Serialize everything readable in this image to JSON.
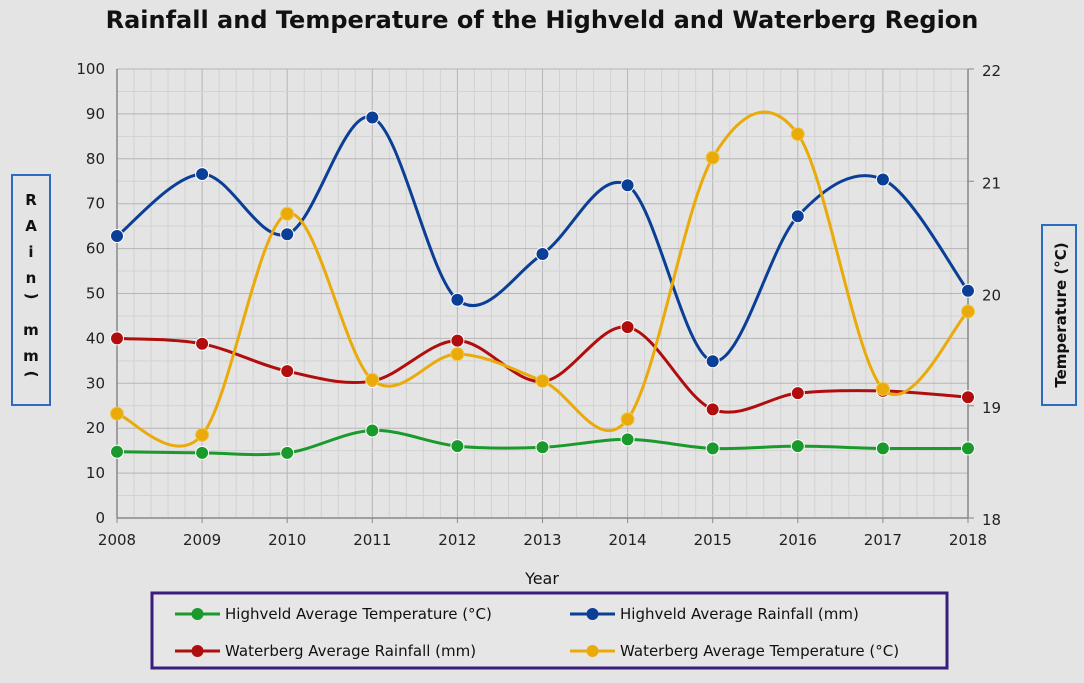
{
  "chart_data": {
    "type": "line",
    "title": "Rainfall and Temperature of the Highveld and Waterberg Region",
    "xlabel": "Year",
    "ylabel_left": "RAin(mm)",
    "ylabel_right": "Temperature (°C)",
    "x": [
      2008,
      2009,
      2010,
      2011,
      2012,
      2013,
      2014,
      2015,
      2016,
      2017,
      2018
    ],
    "ylim_left": [
      0,
      100
    ],
    "yticks_left": [
      0,
      10,
      20,
      30,
      40,
      50,
      60,
      70,
      80,
      90,
      100
    ],
    "ylim_right": [
      18,
      22
    ],
    "yticks_right": [
      18,
      19,
      20,
      21,
      22
    ],
    "grid": true,
    "legend_position": "bottom",
    "series": [
      {
        "name": "Highveld Average Temperature (°C)",
        "axis": "right",
        "color": "#1a9a2c",
        "values": [
          18.59,
          18.58,
          18.58,
          18.78,
          18.64,
          18.63,
          18.7,
          18.62,
          18.64,
          18.62,
          18.62
        ]
      },
      {
        "name": "Highveld Average Rainfall (mm)",
        "axis": "left",
        "color": "#0b3e96",
        "values": [
          62.8,
          76.6,
          63.2,
          89.2,
          48.6,
          58.8,
          74.1,
          34.9,
          67.2,
          75.4,
          50.6
        ]
      },
      {
        "name": "Waterberg Average Rainfall (mm)",
        "axis": "left",
        "color": "#b00e0e",
        "values": [
          40.0,
          38.8,
          32.7,
          30.5,
          39.5,
          30.4,
          42.5,
          24.2,
          27.8,
          28.3,
          26.9
        ]
      },
      {
        "name": "Waterberg Average Temperature (°C)",
        "axis": "right",
        "color": "#e9aa0a",
        "values": [
          18.93,
          18.74,
          20.71,
          19.23,
          19.46,
          19.22,
          18.88,
          21.21,
          21.42,
          19.15,
          19.84
        ]
      }
    ]
  }
}
